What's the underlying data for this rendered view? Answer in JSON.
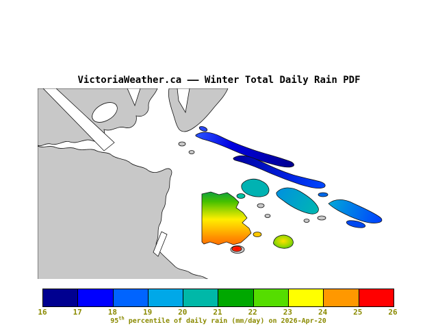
{
  "title": "VictoriaWeather.ca —— Winter Total Daily Rain PDF",
  "map": {
    "land_color": "#c8c8c8",
    "water_color": "#ffffff",
    "coastline_color": "#111111",
    "region_colors": {
      "north_island_chain": [
        "#2850ff",
        "#0000e0",
        "#000090"
      ],
      "mid_islands": [
        "#00b2b2",
        "#0090e0",
        "#00b8b0",
        "#00a8d8",
        "#0040ff"
      ],
      "peninsula_gradient": [
        "#10a040",
        "#44c000",
        "#b4dc00",
        "#ffee00",
        "#ffbe00",
        "#ff9000",
        "#ff7000"
      ],
      "small_island_gradient": [
        "#ffe000",
        "#a0d800",
        "#28b428"
      ],
      "hotspot": "#ff0000"
    }
  },
  "colorbar": {
    "ticks": [
      "16",
      "17",
      "18",
      "19",
      "20",
      "21",
      "22",
      "23",
      "24",
      "25",
      "26"
    ],
    "segment_colors": [
      "#000090",
      "#0000ff",
      "#0064ff",
      "#00a8e8",
      "#00b8a8",
      "#00a800",
      "#55dd00",
      "#ffff00",
      "#ff9800",
      "#ff0000"
    ],
    "label_color": "#8a8a00"
  },
  "scale": {
    "min": "16",
    "max": "26",
    "unit": "mm/day"
  },
  "caption": {
    "value": "95",
    "sup": "th",
    "rest": " percentile of daily rain (mm/day) on 2026-Apr-20"
  }
}
